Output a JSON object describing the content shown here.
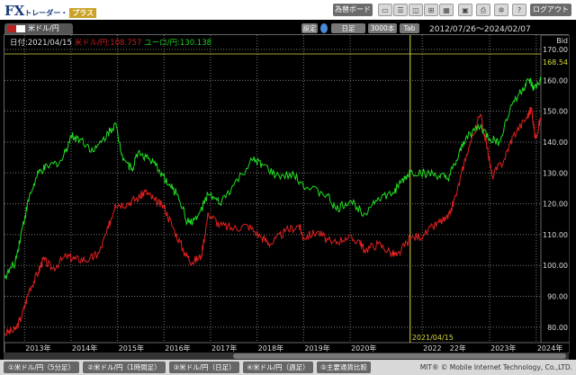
{
  "header": {
    "logo": "FX",
    "logo_sub": "トレーダー・",
    "logo_plus": "プラス",
    "board_button": "為替ボード",
    "logout_button": "ログアウト",
    "icons": [
      "layout-single-icon",
      "layout-rows-icon",
      "layout-cols-icon",
      "layout-quad-icon",
      "layout-grid-icon",
      "save-icon",
      "print-icon",
      "settings-icon",
      "help-icon"
    ]
  },
  "toolbar": {
    "pair": "米ドル/円",
    "settings": "設定",
    "timeframe": "日足",
    "bars": "3000本",
    "tab": "Tab",
    "range": "2012/07/26～2024/02/07"
  },
  "legend": {
    "date": "日付:2021/04/15",
    "usd": "米ドル/円:108.757",
    "eur": "ユーロ/円:130.138"
  },
  "colors": {
    "usd": "#e02020",
    "eur": "#22dd22",
    "cursor": "#d8d840"
  },
  "chart_data": {
    "type": "line",
    "ylabel": "Bid",
    "ylim": [
      75,
      170
    ],
    "yticks": [
      "80.00",
      "90.00",
      "100.00",
      "110.00",
      "120.00",
      "130.00",
      "140.00",
      "150.00",
      "160.00",
      "170.00"
    ],
    "current_marker": "168.54",
    "cursor_label": "2021/04/15",
    "cursor_date": 2021.29,
    "xticks": [
      "2013年",
      "2014年",
      "2015年",
      "2016年",
      "2017年",
      "2018年",
      "2019年",
      "2020年",
      "2022",
      "22年",
      "2023年",
      "2024年"
    ],
    "xlim": [
      2012.57,
      2024.1
    ],
    "grid": true,
    "series": [
      {
        "name": "米ドル/円",
        "x": [
          2012.57,
          2012.8,
          2012.95,
          2013.1,
          2013.3,
          2013.4,
          2013.6,
          2013.9,
          2014.1,
          2014.4,
          2014.6,
          2014.8,
          2014.95,
          2015.2,
          2015.45,
          2015.6,
          2015.8,
          2016.0,
          2016.2,
          2016.45,
          2016.6,
          2016.8,
          2016.95,
          2017.2,
          2017.5,
          2017.8,
          2018.1,
          2018.3,
          2018.6,
          2018.9,
          2019.0,
          2019.3,
          2019.6,
          2019.9,
          2020.2,
          2020.3,
          2020.6,
          2020.9,
          2021.0,
          2021.29,
          2021.6,
          2021.9,
          2022.1,
          2022.3,
          2022.5,
          2022.8,
          2022.95,
          2023.05,
          2023.3,
          2023.5,
          2023.8,
          2023.9,
          2023.98,
          2024.1
        ],
        "values": [
          78,
          79,
          84,
          92,
          98,
          102,
          99,
          103,
          102,
          102,
          104,
          112,
          120,
          120,
          122,
          124,
          121,
          119,
          112,
          104,
          101,
          103,
          117,
          113,
          112,
          113,
          109,
          107,
          111,
          113,
          109,
          111,
          107,
          109,
          108,
          105,
          107,
          104,
          103,
          108.75,
          110,
          114,
          115,
          124,
          136,
          149,
          138,
          129,
          134,
          142,
          148,
          151,
          141,
          148
        ]
      },
      {
        "name": "ユーロ/円",
        "x": [
          2012.57,
          2012.8,
          2012.95,
          2013.1,
          2013.3,
          2013.5,
          2013.8,
          2014.0,
          2014.2,
          2014.5,
          2014.8,
          2014.95,
          2015.1,
          2015.3,
          2015.45,
          2015.7,
          2015.9,
          2016.1,
          2016.3,
          2016.5,
          2016.7,
          2016.95,
          2017.2,
          2017.5,
          2017.9,
          2018.1,
          2018.4,
          2018.8,
          2019.1,
          2019.5,
          2019.7,
          2020.0,
          2020.3,
          2020.6,
          2020.9,
          2021.1,
          2021.29,
          2021.6,
          2021.9,
          2022.1,
          2022.3,
          2022.5,
          2022.8,
          2023.0,
          2023.2,
          2023.5,
          2023.7,
          2023.85,
          2023.95,
          2024.1
        ],
        "values": [
          96,
          101,
          112,
          122,
          130,
          132,
          134,
          142,
          141,
          137,
          143,
          146,
          136,
          131,
          137,
          134,
          131,
          126,
          123,
          114,
          115,
          123,
          120,
          126,
          134,
          133,
          129,
          129,
          125,
          123,
          118,
          121,
          117,
          122,
          123,
          127,
          130.14,
          130,
          129,
          128,
          134,
          142,
          145,
          141,
          140,
          153,
          157,
          160,
          157,
          160
        ]
      }
    ]
  },
  "footer": {
    "tabs": [
      "①米ドル/円（5分足）",
      "②米ドル/円（1時間足）",
      "③米ドル/円（日足）",
      "④米ドル/円（週足）",
      "⑤主要通貨比較"
    ],
    "copyright": "MIT® © Mobile Internet Technology, Co.,LTD."
  }
}
